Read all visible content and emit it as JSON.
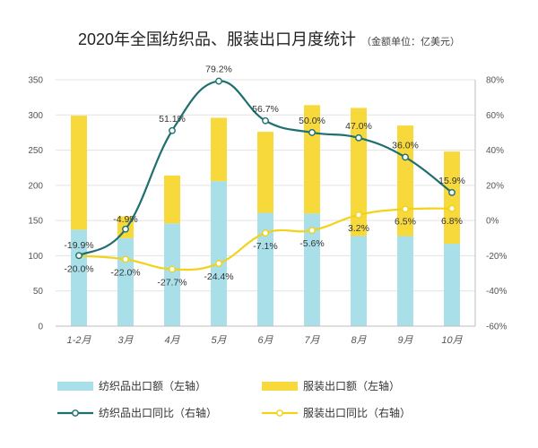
{
  "title": "2020年全国纺织品、服装出口月度统计",
  "unit_note": "（金额单位：亿美元）",
  "chart_data": {
    "type": "bar",
    "categories": [
      "1-2月",
      "3月",
      "4月",
      "5月",
      "6月",
      "7月",
      "8月",
      "9月",
      "10月"
    ],
    "stacked": true,
    "left_axis": {
      "min": 0,
      "max": 350,
      "ticks": [
        0,
        50,
        100,
        150,
        200,
        250,
        300,
        350
      ]
    },
    "right_axis": {
      "min": -60,
      "max": 80,
      "ticks": [
        -60,
        -40,
        -20,
        0,
        20,
        40,
        60,
        80
      ],
      "suffix": "%"
    },
    "series": [
      {
        "name": "纺织品出口额（左轴）",
        "type": "bar",
        "axis": "left",
        "color": "#a8dfe8",
        "values": [
          137,
          125,
          146,
          206,
          161,
          160,
          128,
          128,
          117
        ]
      },
      {
        "name": "服装出口额（左轴）",
        "type": "bar",
        "axis": "left",
        "color": "#f7d93b",
        "values": [
          162,
          31,
          68,
          90,
          115,
          154,
          182,
          157,
          131
        ]
      },
      {
        "name": "纺织品出口同比（右轴）",
        "type": "line",
        "axis": "right",
        "color": "#1f6f6f",
        "values": [
          -19.9,
          -4.9,
          51.1,
          79.2,
          56.7,
          50.0,
          47.0,
          36.0,
          15.9
        ],
        "labels": [
          "-19.9%",
          "-4.9%",
          "51.1%",
          "79.2%",
          "56.7%",
          "50.0%",
          "47.0%",
          "36.0%",
          "15.9%"
        ]
      },
      {
        "name": "服装出口同比（右轴）",
        "type": "line",
        "axis": "right",
        "color": "#f2d21b",
        "values": [
          -20.0,
          -22.0,
          -27.7,
          -24.4,
          -7.1,
          -5.6,
          3.2,
          6.5,
          6.8
        ],
        "labels": [
          "-20.0%",
          "-22.0%",
          "-27.7%",
          "-24.4%",
          "-7.1%",
          "-5.6%",
          "3.2%",
          "6.5%",
          "6.8%"
        ]
      }
    ]
  }
}
